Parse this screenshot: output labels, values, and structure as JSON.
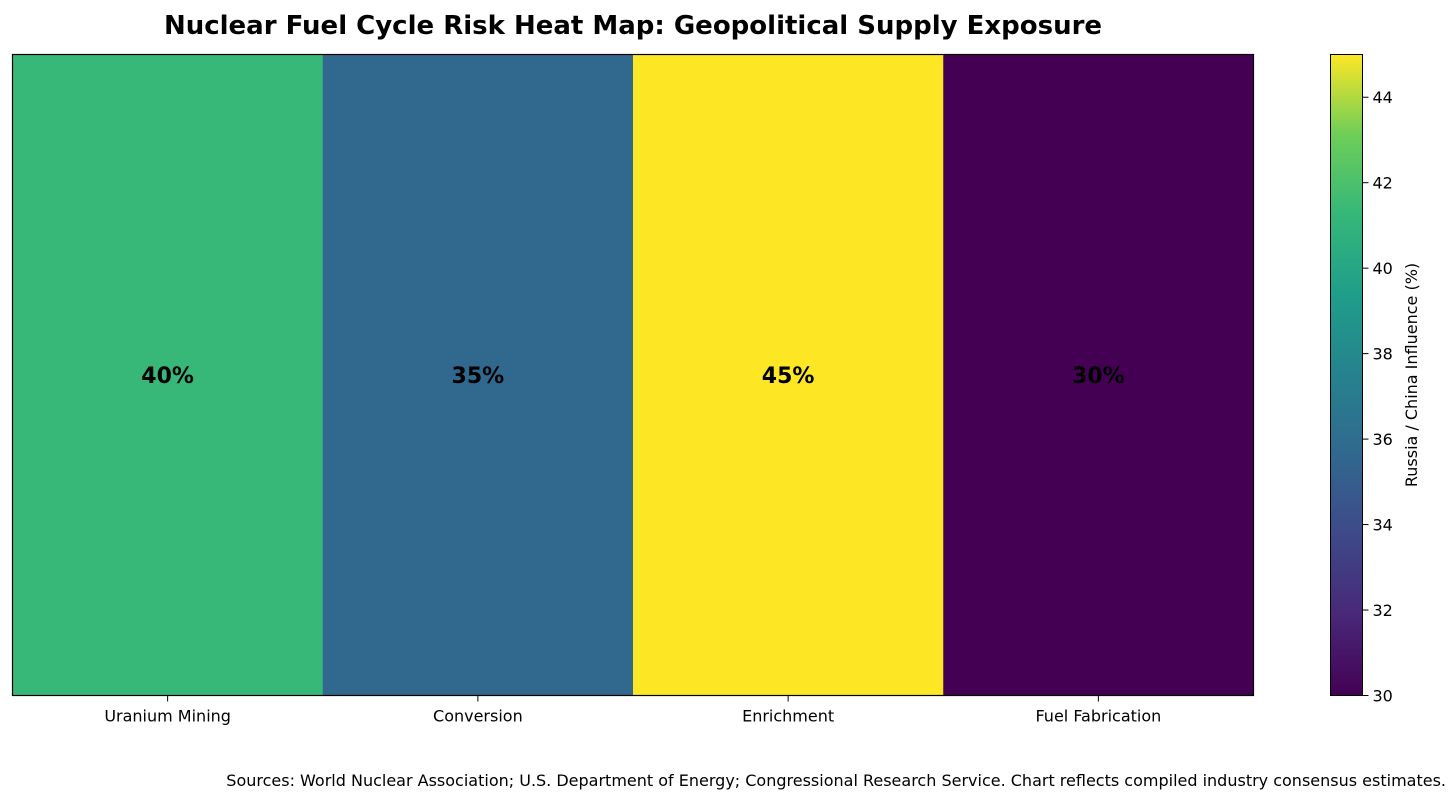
{
  "chart_data": {
    "type": "heatmap",
    "title": "Nuclear Fuel Cycle Risk Heat Map: Geopolitical Supply Exposure",
    "categories": [
      "Uranium Mining",
      "Conversion",
      "Enrichment",
      "Fuel Fabrication"
    ],
    "values": [
      40,
      35,
      45,
      30
    ],
    "cell_labels": [
      "40%",
      "35%",
      "45%",
      "30%"
    ],
    "colors": [
      "#37b878",
      "#31688e",
      "#fde725",
      "#440154"
    ],
    "colorbar": {
      "label": "Russia / China Influence (%)",
      "range": [
        30,
        45
      ],
      "ticks": [
        30,
        32,
        34,
        36,
        38,
        40,
        42,
        44
      ],
      "colormap": "viridis"
    },
    "grid": false
  },
  "footer": {
    "source_note": "Sources: World Nuclear Association; U.S. Department of Energy; Congressional Research Service. Chart reflects compiled industry consensus estimates."
  }
}
